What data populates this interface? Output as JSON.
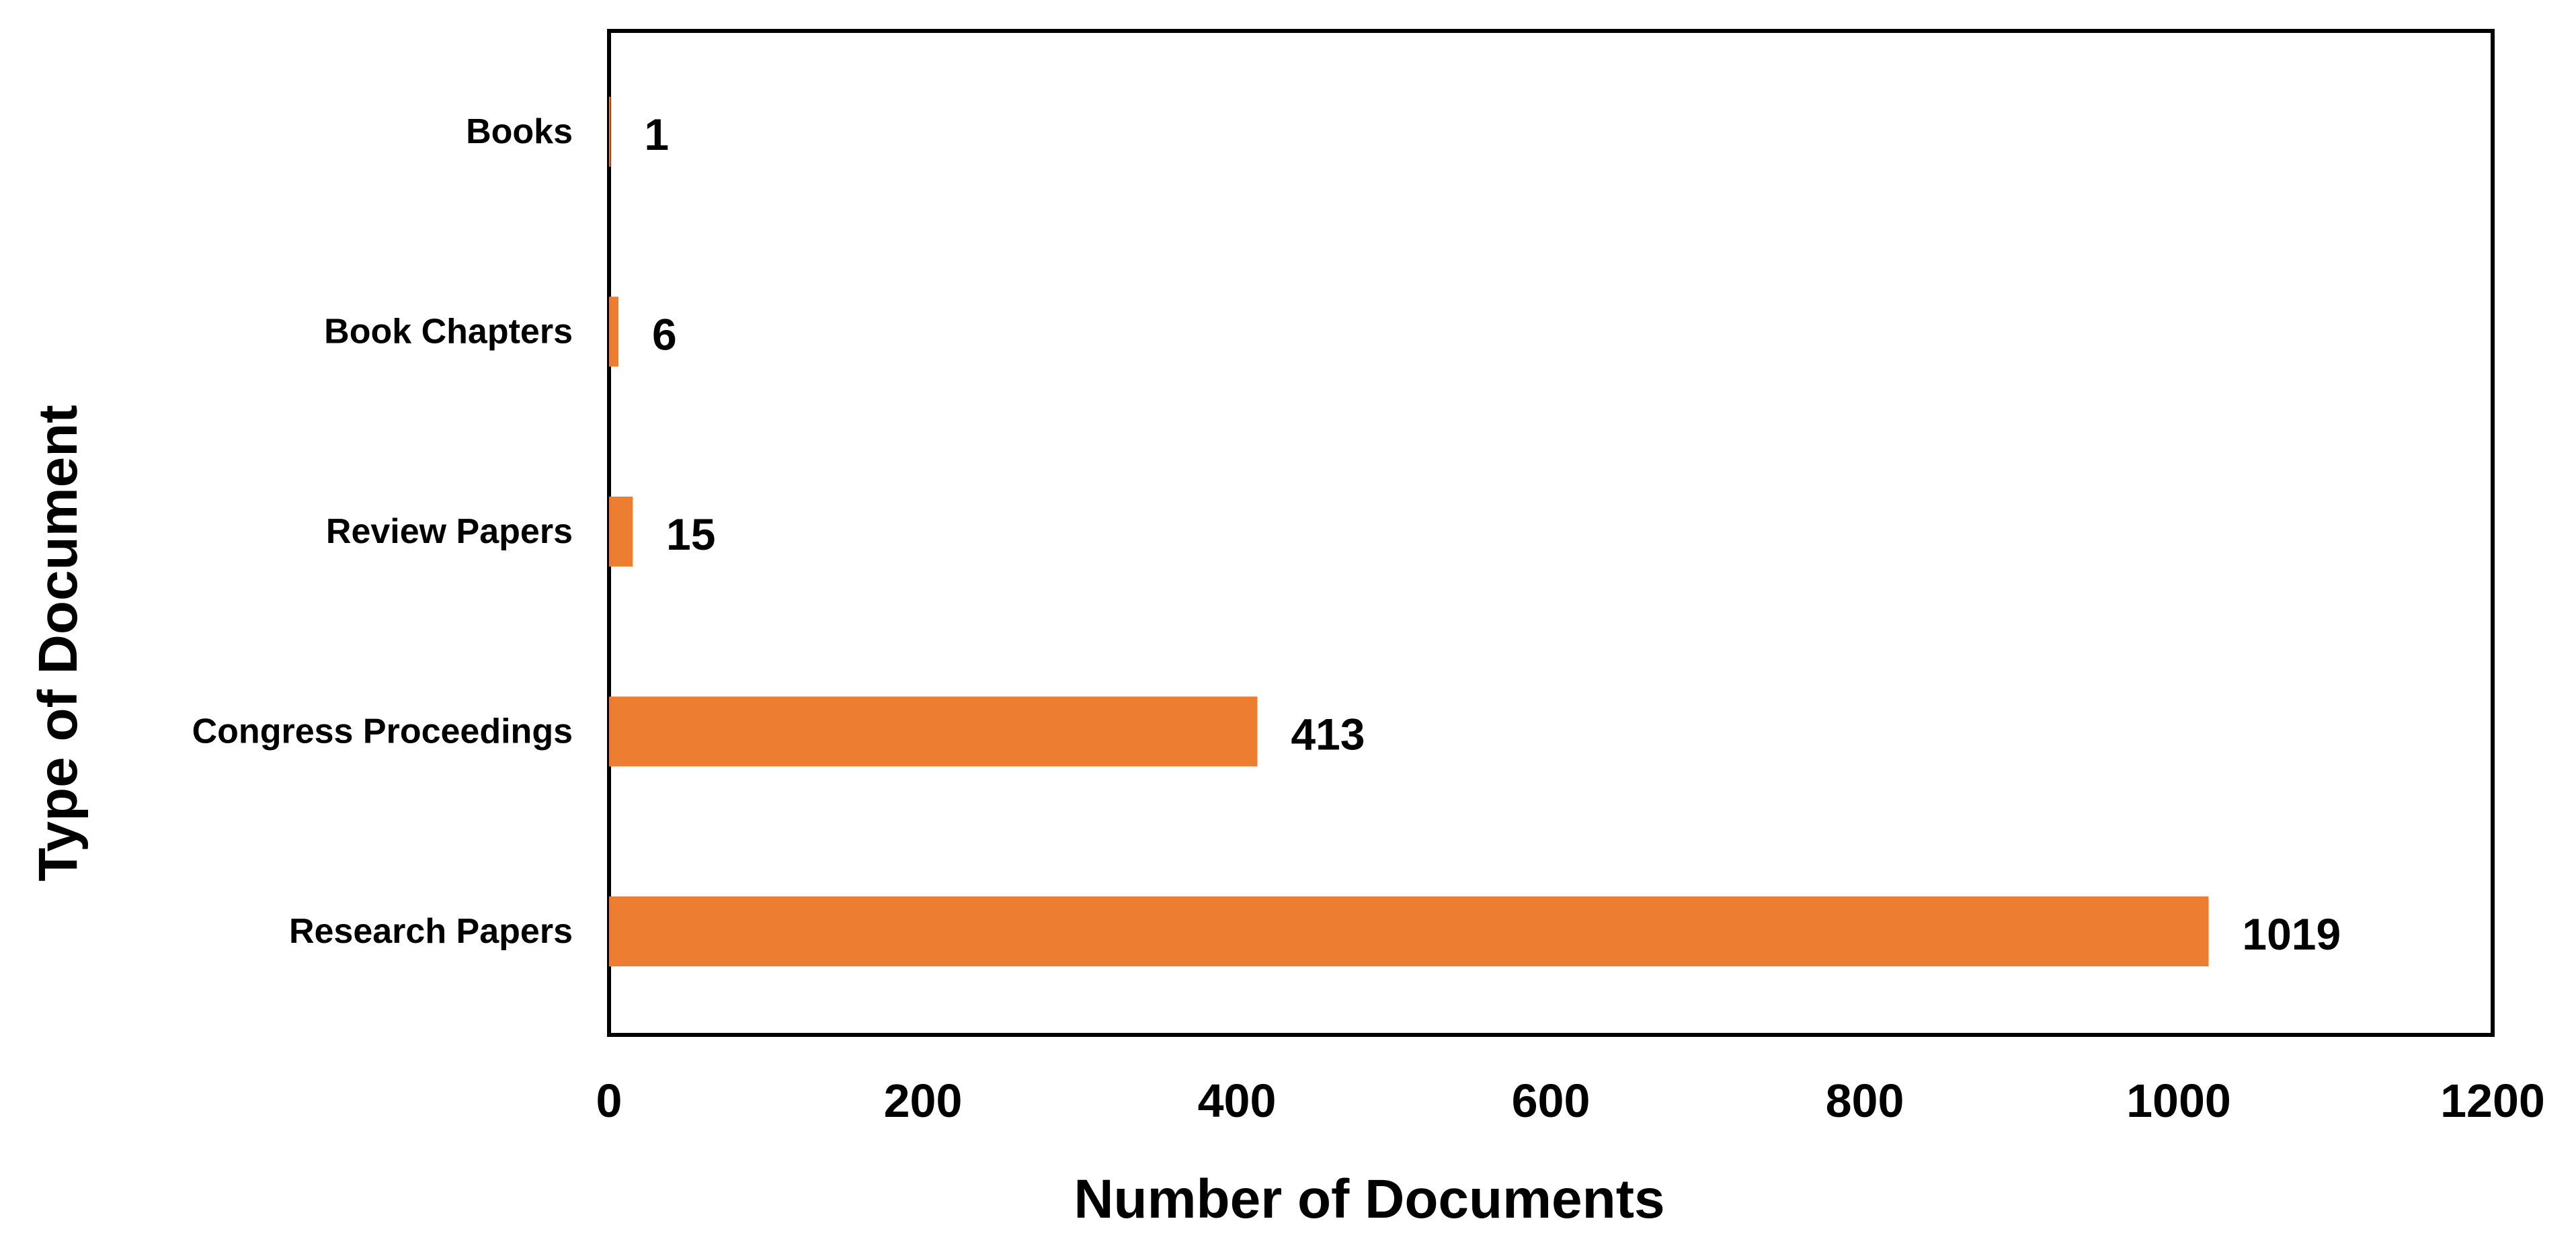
{
  "chart_data": {
    "type": "bar",
    "orientation": "horizontal",
    "categories": [
      "Books",
      "Book Chapters",
      "Review Papers",
      "Congress Proceedings",
      "Research Papers"
    ],
    "values": [
      1,
      6,
      15,
      413,
      1019
    ],
    "data_labels": [
      "1",
      "6",
      "15",
      "413",
      "1019"
    ],
    "xlabel": "Number of Documents",
    "ylabel": "Type of Document",
    "xlim": [
      0,
      1200
    ],
    "xticks": [
      "0",
      "200",
      "400",
      "600",
      "800",
      "1000",
      "1200"
    ],
    "bar_color": "#ED7D31",
    "grid": false,
    "legend": "none"
  }
}
